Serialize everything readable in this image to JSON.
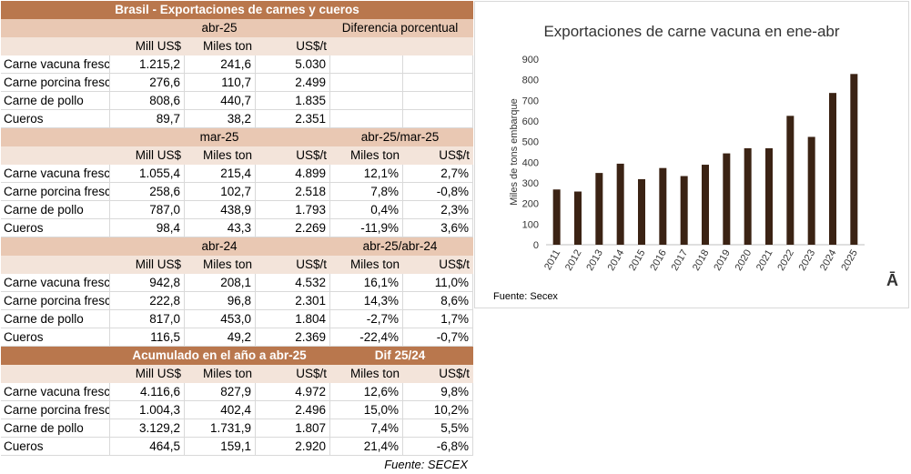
{
  "table": {
    "title": "Brasil - Exportaciones de carnes y cueros",
    "source": "Fuente: SECEX",
    "col_labels": [
      "Mill US$",
      "Miles ton",
      "US$/t"
    ],
    "row_labels": [
      "Carne vacuna fresca",
      "Carne porcina fresca",
      "Carne de pollo",
      "Cueros"
    ],
    "s1": {
      "period": "abr-25",
      "diff_label": "Diferencia porcentual",
      "rows": [
        [
          "1.215,2",
          "241,6",
          "5.030"
        ],
        [
          "276,6",
          "110,7",
          "2.499"
        ],
        [
          "808,6",
          "440,7",
          "1.835"
        ],
        [
          "89,7",
          "38,2",
          "2.351"
        ]
      ]
    },
    "s2": {
      "period": "mar-25",
      "diff_label": "abr-25/mar-25",
      "diff_cols": [
        "Miles ton",
        "US$/t"
      ],
      "rows": [
        [
          "1.055,4",
          "215,4",
          "4.899",
          "12,1%",
          "2,7%"
        ],
        [
          "258,6",
          "102,7",
          "2.518",
          "7,8%",
          "-0,8%"
        ],
        [
          "787,0",
          "438,9",
          "1.793",
          "0,4%",
          "2,3%"
        ],
        [
          "98,4",
          "43,3",
          "2.269",
          "-11,9%",
          "3,6%"
        ]
      ]
    },
    "s3": {
      "period": "abr-24",
      "diff_label": "abr-25/abr-24",
      "diff_cols": [
        "Miles ton",
        "US$/t"
      ],
      "rows": [
        [
          "942,8",
          "208,1",
          "4.532",
          "16,1%",
          "11,0%"
        ],
        [
          "222,8",
          "96,8",
          "2.301",
          "14,3%",
          "8,6%"
        ],
        [
          "817,0",
          "453,0",
          "1.804",
          "-2,7%",
          "1,7%"
        ],
        [
          "116,5",
          "49,2",
          "2.369",
          "-22,4%",
          "-0,7%"
        ]
      ]
    },
    "s4": {
      "period": "Acumulado en el año a abr-25",
      "diff_label": "Dif 25/24",
      "diff_cols": [
        "Miles ton",
        "US$/t"
      ],
      "rows": [
        [
          "4.116,6",
          "827,9",
          "4.972",
          "12,6%",
          "9,8%"
        ],
        [
          "1.004,3",
          "402,4",
          "2.496",
          "15,0%",
          "10,2%"
        ],
        [
          "3.129,2",
          "1.731,9",
          "1.807",
          "7,4%",
          "5,5%"
        ],
        [
          "464,5",
          "159,1",
          "2.920",
          "21,4%",
          "-6,8%"
        ]
      ]
    }
  },
  "chart_data": {
    "type": "bar",
    "title": "Exportaciones de carne vacuna en ene-abr",
    "ylabel": "Miles de tons embarque",
    "xlabel": "",
    "categories": [
      "2011",
      "2012",
      "2013",
      "2014",
      "2015",
      "2016",
      "2017",
      "2018",
      "2019",
      "2020",
      "2021",
      "2022",
      "2023",
      "2024",
      "2025"
    ],
    "values": [
      268,
      258,
      348,
      393,
      318,
      372,
      333,
      388,
      443,
      468,
      468,
      625,
      523,
      736,
      828
    ],
    "ylim": [
      0,
      900
    ],
    "yticks": [
      0,
      100,
      200,
      300,
      400,
      500,
      600,
      700,
      800,
      900
    ],
    "bar_color": "#3b2314",
    "grid": false,
    "source": "Fuente: Secex"
  },
  "logo_glyph": "Ā"
}
